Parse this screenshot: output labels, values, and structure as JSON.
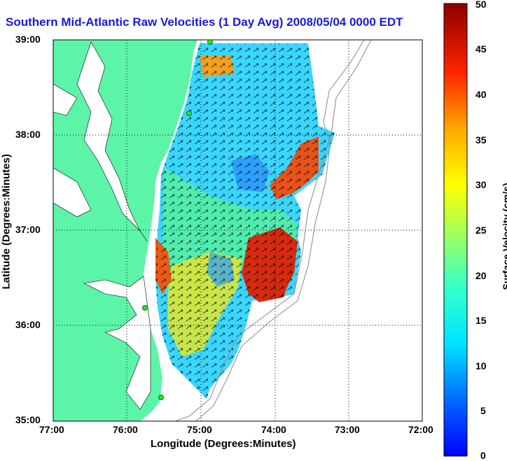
{
  "title": "Southern Mid-Atlantic Raw Velocities (1 Day Avg) 2008/05/04 0000 EDT",
  "axes": {
    "xlabel": "Longitude (Degrees:Minutes)",
    "ylabel": "Latitude (Degrees:Minutes)",
    "x_ticks": [
      "77:00",
      "76:00",
      "75:00",
      "74:00",
      "73:00",
      "72:00"
    ],
    "y_ticks": [
      "39:00",
      "38:00",
      "37:00",
      "36:00",
      "35:00"
    ],
    "grid": "dotted"
  },
  "colorbar": {
    "label": "Surface Velocity (cm/s)",
    "ticks": [
      "50",
      "45",
      "40",
      "35",
      "30",
      "25",
      "20",
      "15",
      "10",
      "5",
      "0"
    ],
    "min": 0,
    "max": 50
  },
  "colors": {
    "land": "#5cf5a8",
    "ocean": "#ffffff",
    "title": "#1a1ad6",
    "station": "#2ee02e"
  },
  "stations": [
    "site-1",
    "site-2",
    "site-3",
    "site-4"
  ]
}
